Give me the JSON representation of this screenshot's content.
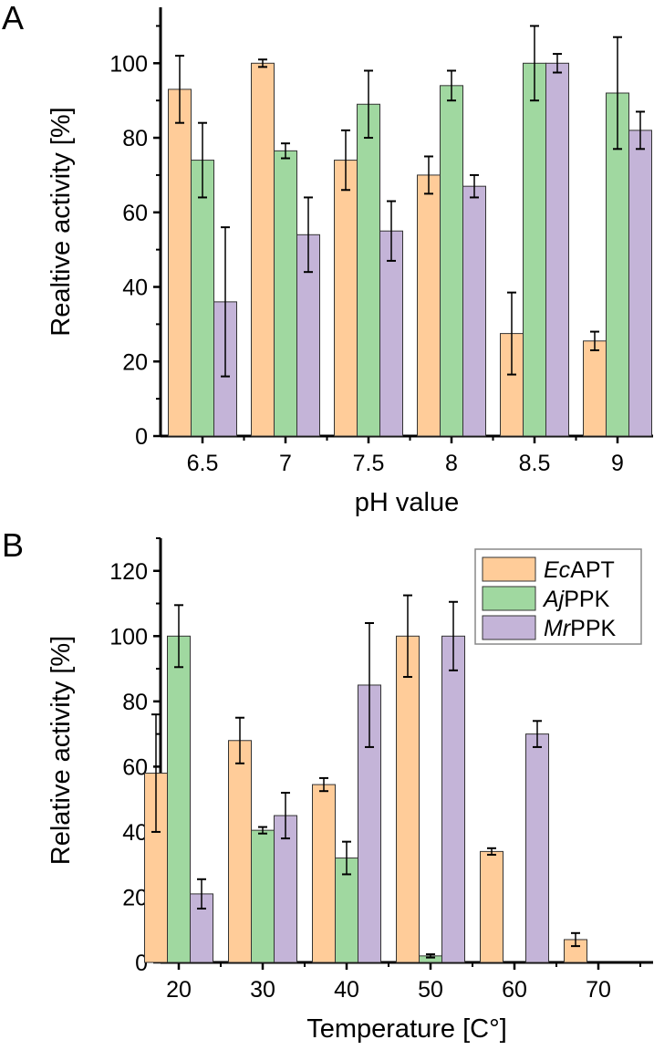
{
  "colors": {
    "EcAPT": "#FFCC99",
    "AjPPK": "#A0D8A0",
    "MrPPK": "#C4B4D8"
  },
  "chart_data": [
    {
      "panel": "A",
      "type": "bar",
      "xlabel": "pH value",
      "ylabel": "Realtive activity [%]",
      "ylim": [
        0,
        115
      ],
      "yticks": [
        0,
        20,
        40,
        60,
        80,
        100
      ],
      "categories": [
        "6.5",
        "7",
        "7.5",
        "8",
        "8.5",
        "9"
      ],
      "series": [
        {
          "name": "EcAPT",
          "values": [
            93,
            100,
            74,
            70,
            27.5,
            25.5
          ],
          "errors": [
            9,
            1,
            8,
            5,
            11,
            2.5
          ]
        },
        {
          "name": "AjPPK",
          "values": [
            74,
            76.5,
            89,
            94,
            100,
            92
          ],
          "errors": [
            10,
            2,
            9,
            4,
            10,
            15
          ]
        },
        {
          "name": "MrPPK",
          "values": [
            36,
            54,
            55,
            67,
            100,
            82
          ],
          "errors": [
            20,
            10,
            8,
            3,
            2.5,
            5
          ]
        }
      ]
    },
    {
      "panel": "B",
      "type": "bar",
      "xlabel": "Temperature [C°]",
      "ylabel": "Relative activity [%]",
      "ylim": [
        0,
        130
      ],
      "yticks": [
        0,
        20,
        40,
        60,
        80,
        100,
        120
      ],
      "categories": [
        "20",
        "30",
        "40",
        "50",
        "60",
        "70"
      ],
      "legend": {
        "position": "top-right",
        "entries": [
          {
            "italic": "Ec",
            "rest": "APT"
          },
          {
            "italic": "Aj",
            "rest": "PPK"
          },
          {
            "italic": "Mr",
            "rest": "PPK"
          }
        ]
      },
      "series": [
        {
          "name": "EcAPT",
          "values": [
            58,
            68,
            54.5,
            100,
            34,
            7
          ],
          "errors": [
            18,
            7,
            2,
            12.5,
            1,
            2
          ]
        },
        {
          "name": "AjPPK",
          "values": [
            100,
            40.5,
            32,
            2,
            0,
            0
          ],
          "errors": [
            9.5,
            1,
            5,
            0.5,
            0,
            0
          ]
        },
        {
          "name": "MrPPK",
          "values": [
            21,
            45,
            85,
            100,
            70,
            0
          ],
          "errors": [
            4.5,
            7,
            19,
            10.5,
            4,
            0
          ]
        }
      ]
    }
  ]
}
